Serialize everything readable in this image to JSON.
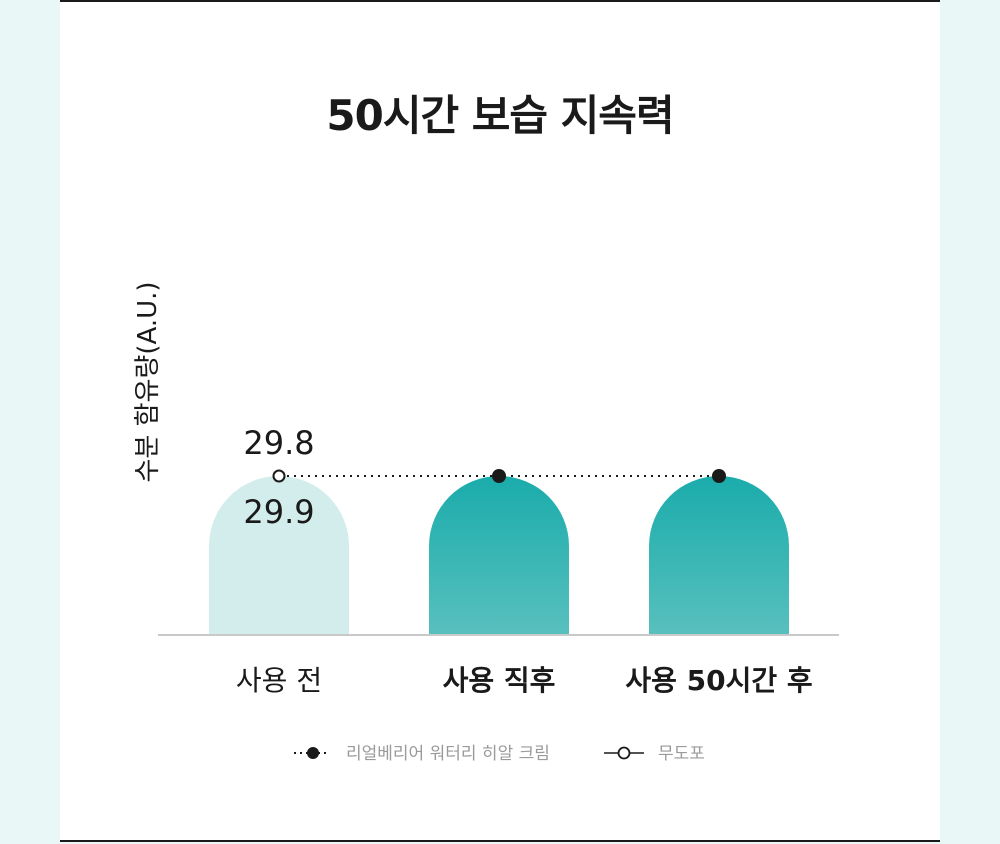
{
  "title": "50시간 보습 지속력",
  "chart_data": {
    "type": "bar",
    "categories": [
      "사용 전",
      "사용 직후",
      "사용 50시간 후"
    ],
    "ylabel": "수분 함유량(A.U.)",
    "series": [
      {
        "name": "리얼베리어 워터리 히알 크림",
        "values": [
          29.8,
          29.8,
          29.8
        ],
        "marker": "filled-dot",
        "line": "dotted"
      },
      {
        "name": "무도포",
        "values": [
          29.9,
          null,
          null
        ],
        "marker": "open-dot",
        "line": "solid"
      }
    ],
    "data_labels": [
      "29.8",
      "29.9"
    ],
    "ylim": [
      0,
      32
    ],
    "bar_colors": [
      "#d3ecec",
      "#23aeac",
      "#23aeac"
    ],
    "bar_gradient_bottom": "#55bfbd",
    "grid": false,
    "legend": "bottom-center"
  }
}
